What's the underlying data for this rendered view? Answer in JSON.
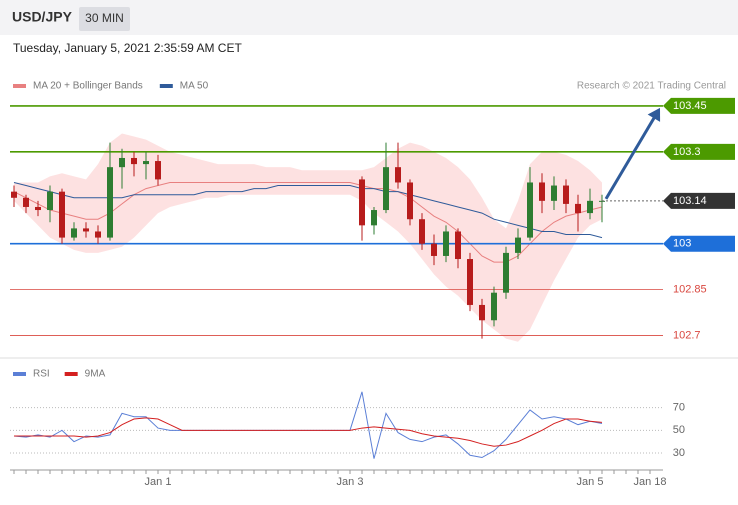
{
  "header": {
    "symbol": "USD/JPY",
    "timeframe": "30 MIN",
    "timestamp": "Tuesday, January 5, 2021 2:35:59 AM CET",
    "credit": "Research © 2021 Trading Central"
  },
  "chart_data": [
    {
      "type": "candlestick",
      "ylim": [
        102.63,
        103.6
      ],
      "up_color": "#2e7d32",
      "down_color": "#b71c1c",
      "open": [
        103.17,
        103.15,
        103.12,
        103.11,
        103.17,
        103.02,
        103.05,
        103.04,
        103.02,
        103.25,
        103.28,
        103.26,
        103.27,
        null,
        null,
        null,
        null,
        null,
        null,
        null,
        null,
        null,
        null,
        null,
        null,
        null,
        null,
        null,
        null,
        103.21,
        103.06,
        103.11,
        103.25,
        103.2,
        103.08,
        103.0,
        102.96,
        103.04,
        102.95,
        102.8,
        102.75,
        102.84,
        102.97,
        103.02,
        103.2,
        103.14,
        103.19,
        103.13,
        103.1,
        103.14,
        null,
        null,
        null,
        null
      ],
      "high": [
        103.19,
        103.16,
        103.14,
        103.19,
        103.18,
        103.07,
        103.07,
        103.06,
        103.33,
        103.31,
        103.3,
        103.3,
        103.29,
        null,
        null,
        null,
        null,
        null,
        null,
        null,
        null,
        null,
        null,
        null,
        null,
        null,
        null,
        null,
        null,
        103.22,
        103.12,
        103.33,
        103.33,
        103.21,
        103.1,
        103.03,
        103.06,
        103.05,
        102.97,
        102.82,
        102.86,
        102.99,
        103.05,
        103.25,
        103.23,
        103.22,
        103.21,
        103.16,
        103.18,
        103.16,
        null,
        null,
        null,
        null
      ],
      "low": [
        103.12,
        103.1,
        103.09,
        103.07,
        103.0,
        103.01,
        103.02,
        103.0,
        103.01,
        103.18,
        103.22,
        103.21,
        103.19,
        null,
        null,
        null,
        null,
        null,
        null,
        null,
        null,
        null,
        null,
        null,
        null,
        null,
        null,
        null,
        null,
        103.01,
        103.03,
        103.1,
        103.18,
        103.06,
        102.98,
        102.93,
        102.94,
        102.92,
        102.78,
        102.69,
        102.73,
        102.82,
        102.95,
        103.01,
        103.1,
        103.11,
        103.1,
        103.04,
        103.08,
        103.07,
        null,
        null,
        null,
        null
      ],
      "close": [
        103.15,
        103.12,
        103.11,
        103.17,
        103.02,
        103.05,
        103.04,
        103.02,
        103.25,
        103.28,
        103.26,
        103.27,
        103.21,
        null,
        null,
        null,
        null,
        null,
        null,
        null,
        null,
        null,
        null,
        null,
        null,
        null,
        null,
        null,
        null,
        103.06,
        103.11,
        103.25,
        103.2,
        103.08,
        103.0,
        102.96,
        103.04,
        102.95,
        102.8,
        102.75,
        102.84,
        102.97,
        103.02,
        103.2,
        103.14,
        103.19,
        103.13,
        103.1,
        103.14,
        103.14,
        null,
        null,
        null,
        null
      ],
      "series": [
        {
          "name": "MA 20 + Bollinger Bands",
          "color": "#e88080",
          "band_color": "#fcdada",
          "values": [
            103.17,
            103.15,
            103.13,
            103.11,
            103.1,
            103.09,
            103.08,
            103.08,
            103.1,
            103.13,
            103.16,
            103.18,
            103.19,
            103.2,
            103.2,
            103.2,
            103.2,
            103.2,
            103.2,
            103.2,
            103.2,
            103.2,
            103.2,
            103.2,
            103.2,
            103.2,
            103.2,
            103.2,
            103.2,
            103.19,
            103.18,
            103.18,
            103.17,
            103.15,
            103.12,
            103.09,
            103.07,
            103.04,
            103.0,
            102.96,
            102.94,
            102.94,
            102.96,
            103.0,
            103.04,
            103.07,
            103.09,
            103.1,
            103.11,
            103.12,
            null,
            null,
            null,
            null
          ],
          "upper": [
            103.2,
            103.2,
            103.2,
            103.22,
            103.23,
            103.22,
            103.21,
            103.26,
            103.33,
            103.36,
            103.35,
            103.34,
            103.32,
            103.3,
            103.29,
            103.28,
            103.27,
            103.26,
            103.26,
            103.26,
            103.26,
            103.25,
            103.25,
            103.25,
            103.24,
            103.24,
            103.24,
            103.24,
            103.24,
            103.24,
            103.25,
            103.28,
            103.31,
            103.33,
            103.32,
            103.3,
            103.28,
            103.25,
            103.21,
            103.15,
            103.08,
            103.05,
            103.14,
            103.26,
            103.3,
            103.3,
            103.29,
            103.27,
            103.24,
            103.2,
            null,
            null,
            null,
            null
          ],
          "lower": [
            103.14,
            103.1,
            103.06,
            103.02,
            103.0,
            102.98,
            102.97,
            102.97,
            102.98,
            102.99,
            103.02,
            103.06,
            103.1,
            103.12,
            103.13,
            103.14,
            103.15,
            103.15,
            103.16,
            103.16,
            103.16,
            103.16,
            103.16,
            103.16,
            103.16,
            103.16,
            103.16,
            103.16,
            103.16,
            103.14,
            103.1,
            103.07,
            103.04,
            103.0,
            102.95,
            102.9,
            102.86,
            102.83,
            102.79,
            102.75,
            102.72,
            102.69,
            102.68,
            102.72,
            102.8,
            102.88,
            102.95,
            103.02,
            103.06,
            103.08,
            null,
            null,
            null,
            null
          ]
        },
        {
          "name": "MA 50",
          "color": "#2f5b9a",
          "values": [
            103.2,
            103.19,
            103.18,
            103.17,
            103.16,
            103.15,
            103.15,
            103.15,
            103.15,
            103.15,
            103.16,
            103.16,
            103.16,
            103.16,
            103.16,
            103.16,
            103.17,
            103.17,
            103.17,
            103.17,
            103.18,
            103.18,
            103.19,
            103.19,
            103.19,
            103.19,
            103.19,
            103.19,
            103.19,
            103.18,
            103.18,
            103.17,
            103.17,
            103.16,
            103.15,
            103.14,
            103.13,
            103.12,
            103.11,
            103.1,
            103.08,
            103.07,
            103.06,
            103.05,
            103.04,
            103.04,
            103.03,
            103.03,
            103.03,
            103.02,
            null,
            null,
            null,
            null
          ]
        }
      ],
      "levels": [
        {
          "value": 103.45,
          "color": "#4c9a00",
          "boxed": true
        },
        {
          "value": 103.3,
          "color": "#4c9a00",
          "boxed": true
        },
        {
          "value": 103.0,
          "color": "#1e6fd9",
          "boxed": true
        },
        {
          "value": 102.85,
          "color": "#d9473f",
          "boxed": false
        },
        {
          "value": 102.7,
          "color": "#d9473f",
          "boxed": false
        }
      ],
      "last_color": "#333333"
    },
    {
      "type": "line",
      "ylim": [
        15,
        90
      ],
      "yticks": [
        30,
        50,
        70
      ],
      "categories": [
        null,
        null,
        null,
        null,
        null,
        null,
        null,
        null,
        null,
        null,
        null,
        null,
        "Jan 1",
        null,
        null,
        null,
        null,
        null,
        null,
        null,
        null,
        null,
        null,
        null,
        null,
        null,
        null,
        null,
        "Jan 3",
        null,
        null,
        null,
        null,
        null,
        null,
        null,
        null,
        null,
        null,
        null,
        null,
        null,
        null,
        null,
        null,
        null,
        null,
        null,
        "Jan 5",
        null,
        null,
        null,
        null,
        "Jan 18"
      ],
      "series": [
        {
          "name": "RSI",
          "color": "#5b7fd6",
          "values": [
            45,
            44,
            46,
            44,
            50,
            40,
            45,
            44,
            46,
            65,
            62,
            62,
            52,
            50,
            50,
            50,
            50,
            50,
            50,
            50,
            50,
            50,
            50,
            50,
            50,
            50,
            50,
            50,
            50,
            84,
            25,
            65,
            48,
            42,
            40,
            44,
            46,
            38,
            28,
            26,
            32,
            42,
            55,
            68,
            60,
            62,
            60,
            55,
            58,
            56,
            null,
            null,
            null,
            null
          ]
        },
        {
          "name": "9MA",
          "color": "#d42020",
          "values": [
            45,
            45,
            45,
            45,
            45,
            45,
            44,
            45,
            48,
            55,
            60,
            61,
            60,
            55,
            50,
            50,
            50,
            50,
            50,
            50,
            50,
            50,
            50,
            50,
            50,
            50,
            50,
            50,
            50,
            52,
            53,
            52,
            51,
            50,
            47,
            45,
            44,
            43,
            41,
            38,
            36,
            37,
            40,
            45,
            50,
            56,
            60,
            60,
            58,
            57,
            null,
            null,
            null,
            null
          ]
        }
      ]
    }
  ]
}
